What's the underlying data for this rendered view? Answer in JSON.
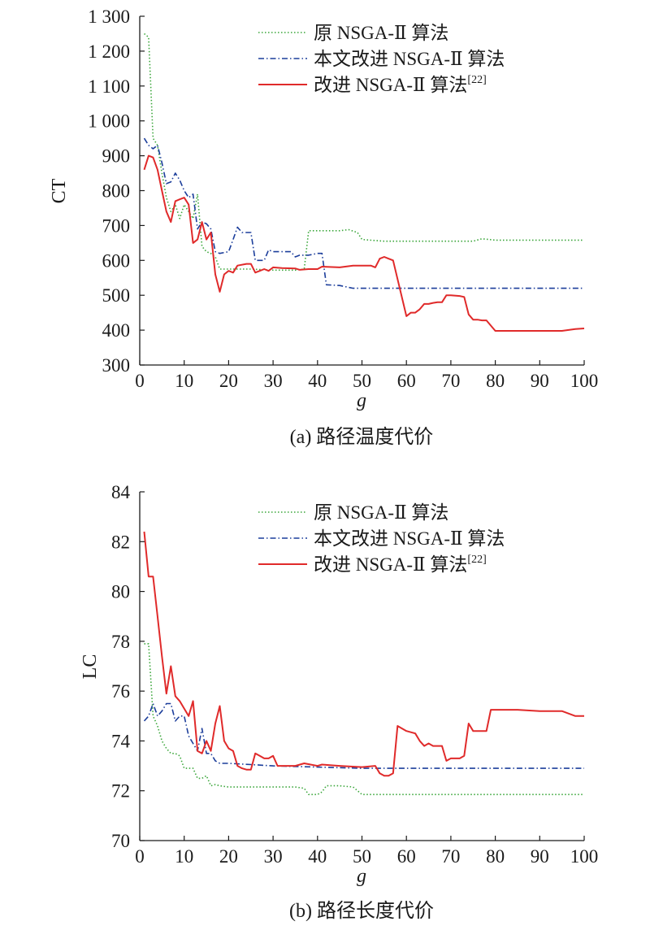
{
  "chart_data": [
    {
      "type": "line",
      "caption": "(a) 路径温度代价",
      "xlabel": "g",
      "ylabel": "CT",
      "xlim": [
        0,
        100
      ],
      "ylim": [
        300,
        1300
      ],
      "xticks": [
        0,
        10,
        20,
        30,
        40,
        50,
        60,
        70,
        80,
        90,
        100
      ],
      "yticks": [
        300,
        400,
        500,
        600,
        700,
        800,
        900,
        1000,
        1100,
        1200,
        1300
      ],
      "ytick_labels": [
        "300",
        "400",
        "500",
        "600",
        "700",
        "800",
        "900",
        "1 000",
        "1 100",
        "1 200",
        "1 300"
      ],
      "grid": false,
      "legend_position": "top-right",
      "series": [
        {
          "name": "原 NSGA-Ⅱ 算法",
          "color": "#3aa63a",
          "style": "dotted",
          "x": [
            1,
            2,
            3,
            4,
            5,
            6,
            7,
            8,
            9,
            10,
            11,
            12,
            13,
            14,
            15,
            16,
            17,
            18,
            20,
            25,
            30,
            35,
            37,
            38,
            40,
            45,
            47,
            49,
            50,
            55,
            60,
            70,
            75,
            77,
            80,
            90,
            100
          ],
          "y": [
            1250,
            1240,
            950,
            930,
            850,
            780,
            740,
            760,
            720,
            760,
            740,
            720,
            790,
            640,
            625,
            620,
            610,
            575,
            575,
            575,
            572,
            572,
            575,
            685,
            685,
            685,
            688,
            680,
            660,
            655,
            655,
            655,
            655,
            662,
            658,
            658,
            658
          ]
        },
        {
          "name": "本文改进 NSGA-Ⅱ 算法",
          "color": "#1c3e9b",
          "style": "dashdot",
          "x": [
            1,
            2,
            3,
            4,
            5,
            6,
            7,
            8,
            9,
            10,
            11,
            12,
            13,
            14,
            15,
            16,
            17,
            18,
            20,
            21,
            22,
            23,
            24,
            25,
            26,
            27,
            28,
            29,
            30,
            32,
            34,
            35,
            36,
            38,
            40,
            41,
            42,
            45,
            48,
            50,
            60,
            70,
            80,
            90,
            100
          ],
          "y": [
            950,
            930,
            920,
            930,
            880,
            820,
            825,
            850,
            830,
            800,
            780,
            790,
            690,
            710,
            705,
            690,
            625,
            620,
            625,
            660,
            695,
            680,
            680,
            680,
            600,
            600,
            600,
            630,
            625,
            625,
            625,
            610,
            615,
            615,
            620,
            620,
            530,
            528,
            520,
            520,
            520,
            520,
            520,
            520,
            520
          ]
        },
        {
          "name": "改进 NSGA-Ⅱ 算法",
          "name_superscript": "[22]",
          "color": "#e02a2a",
          "style": "solid",
          "x": [
            1,
            2,
            3,
            4,
            5,
            6,
            7,
            8,
            9,
            10,
            11,
            12,
            13,
            14,
            15,
            16,
            17,
            18,
            19,
            20,
            21,
            22,
            24,
            25,
            26,
            27,
            28,
            29,
            30,
            32,
            35,
            36,
            38,
            40,
            41,
            45,
            48,
            50,
            52,
            53,
            54,
            55,
            56,
            57,
            60,
            61,
            62,
            63,
            64,
            65,
            66,
            67,
            68,
            69,
            70,
            72,
            73,
            74,
            75,
            76,
            77,
            78,
            80,
            85,
            90,
            92,
            95,
            98,
            100
          ],
          "y": [
            860,
            900,
            895,
            860,
            800,
            740,
            710,
            770,
            775,
            780,
            760,
            650,
            660,
            710,
            660,
            680,
            560,
            510,
            560,
            570,
            565,
            585,
            590,
            590,
            565,
            570,
            575,
            570,
            580,
            578,
            577,
            573,
            575,
            575,
            582,
            580,
            585,
            585,
            585,
            580,
            605,
            610,
            605,
            600,
            440,
            450,
            450,
            460,
            475,
            475,
            478,
            480,
            480,
            500,
            500,
            498,
            495,
            445,
            430,
            430,
            428,
            428,
            398,
            398,
            398,
            398,
            398,
            403,
            405
          ]
        }
      ]
    },
    {
      "type": "line",
      "caption": "(b) 路径长度代价",
      "xlabel": "g",
      "ylabel": "LC",
      "xlim": [
        0,
        100
      ],
      "ylim": [
        70,
        84
      ],
      "xticks": [
        0,
        10,
        20,
        30,
        40,
        50,
        60,
        70,
        80,
        90,
        100
      ],
      "yticks": [
        70,
        72,
        74,
        76,
        78,
        80,
        82,
        84
      ],
      "ytick_labels": [
        "70",
        "72",
        "74",
        "76",
        "78",
        "80",
        "82",
        "84"
      ],
      "grid": false,
      "legend_position": "top-right",
      "series": [
        {
          "name": "原 NSGA-Ⅱ 算法",
          "color": "#3aa63a",
          "style": "dotted",
          "x": [
            1,
            2,
            3,
            4,
            5,
            6,
            7,
            8,
            9,
            10,
            11,
            12,
            13,
            14,
            15,
            16,
            17,
            18,
            20,
            25,
            30,
            35,
            37,
            38,
            40,
            41,
            42,
            45,
            48,
            50,
            55,
            60,
            70,
            80,
            90,
            100
          ],
          "y": [
            77.9,
            77.9,
            75.0,
            74.6,
            74.0,
            73.7,
            73.5,
            73.5,
            73.4,
            72.9,
            72.9,
            72.9,
            72.5,
            72.5,
            72.6,
            72.2,
            72.25,
            72.2,
            72.15,
            72.15,
            72.15,
            72.15,
            72.1,
            71.85,
            71.85,
            71.95,
            72.2,
            72.2,
            72.15,
            71.85,
            71.85,
            71.85,
            71.85,
            71.85,
            71.85,
            71.85
          ]
        },
        {
          "name": "本文改进 NSGA-Ⅱ 算法",
          "color": "#1c3e9b",
          "style": "dashdot",
          "x": [
            1,
            2,
            3,
            4,
            5,
            6,
            7,
            8,
            9,
            10,
            11,
            12,
            13,
            14,
            15,
            16,
            17,
            18,
            20,
            25,
            30,
            40,
            50,
            60,
            70,
            80,
            90,
            100
          ],
          "y": [
            74.8,
            75.0,
            75.5,
            75.0,
            75.2,
            75.5,
            75.5,
            74.8,
            75.0,
            75.0,
            74.2,
            73.9,
            73.6,
            74.5,
            73.5,
            73.5,
            73.2,
            73.1,
            73.1,
            73.05,
            73.0,
            72.95,
            72.9,
            72.9,
            72.9,
            72.9,
            72.9,
            72.9
          ]
        },
        {
          "name": "改进 NSGA-Ⅱ 算法",
          "name_superscript": "[22]",
          "color": "#e02a2a",
          "style": "solid",
          "x": [
            1,
            2,
            3,
            4,
            5,
            6,
            7,
            8,
            9,
            10,
            11,
            12,
            13,
            14,
            15,
            16,
            17,
            18,
            19,
            20,
            21,
            22,
            23,
            24,
            25,
            26,
            27,
            28,
            29,
            30,
            31,
            32,
            35,
            37,
            40,
            41,
            45,
            50,
            53,
            54,
            55,
            56,
            57,
            58,
            60,
            62,
            63,
            64,
            65,
            66,
            67,
            68,
            69,
            70,
            71,
            72,
            73,
            74,
            75,
            76,
            77,
            78,
            79,
            80,
            85,
            90,
            95,
            98,
            100
          ],
          "y": [
            82.4,
            80.6,
            80.6,
            79.0,
            77.4,
            75.9,
            77.0,
            75.8,
            75.6,
            75.3,
            75.0,
            75.6,
            73.6,
            73.5,
            74.0,
            73.6,
            74.7,
            75.4,
            74.0,
            73.7,
            73.6,
            73.0,
            72.9,
            72.85,
            72.85,
            73.5,
            73.4,
            73.3,
            73.3,
            73.4,
            73.0,
            73.0,
            73.0,
            73.1,
            73.0,
            73.05,
            73.0,
            72.95,
            73.0,
            72.7,
            72.6,
            72.6,
            72.7,
            74.6,
            74.4,
            74.3,
            74.0,
            73.8,
            73.9,
            73.8,
            73.8,
            73.8,
            73.2,
            73.3,
            73.3,
            73.3,
            73.4,
            74.7,
            74.4,
            74.4,
            74.4,
            74.4,
            75.25,
            75.25,
            75.25,
            75.2,
            75.2,
            75.0,
            75.0
          ]
        }
      ]
    }
  ]
}
